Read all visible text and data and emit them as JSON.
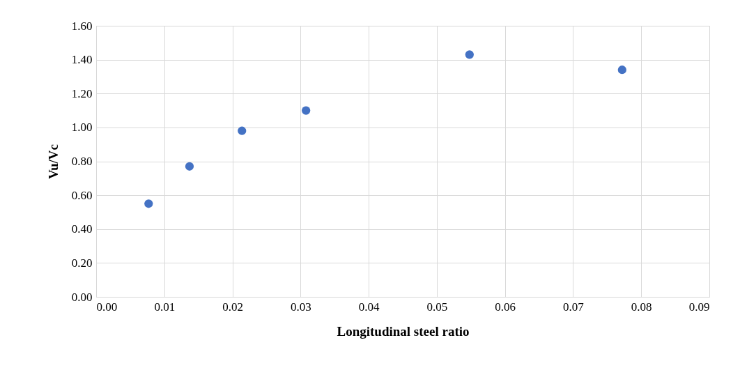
{
  "chart_data": {
    "type": "scatter",
    "xlabel": "Longitudinal steel ratio",
    "ylabel": "Vu/Vc",
    "x": [
      0.0077,
      0.0137,
      0.0214,
      0.0308,
      0.0548,
      0.0772
    ],
    "series": [
      {
        "color": "#4472c4",
        "values": [
          0.55,
          0.77,
          0.98,
          1.1,
          1.43,
          1.34
        ]
      }
    ],
    "xlim": [
      0,
      0.09
    ],
    "xticks": [
      {
        "value": 0,
        "label": "0.00"
      },
      {
        "value": 0.01,
        "label": "0.01"
      },
      {
        "value": 0.02,
        "label": "0.02"
      },
      {
        "value": 0.03,
        "label": "0.03"
      },
      {
        "value": 0.04,
        "label": "0.04"
      },
      {
        "value": 0.05,
        "label": "0.05"
      },
      {
        "value": 0.06,
        "label": "0.06"
      },
      {
        "value": 0.07,
        "label": "0.07"
      },
      {
        "value": 0.08,
        "label": "0.08"
      },
      {
        "value": 0.09,
        "label": "0.09"
      }
    ],
    "ylim": [
      0,
      1.6
    ],
    "yticks": [
      {
        "value": 0,
        "label": "0.00"
      },
      {
        "value": 0.2,
        "label": "0.20"
      },
      {
        "value": 0.4,
        "label": "0.40"
      },
      {
        "value": 0.6,
        "label": "0.60"
      },
      {
        "value": 0.8,
        "label": "0.80"
      },
      {
        "value": 1.0,
        "label": "1.00"
      },
      {
        "value": 1.2,
        "label": "1.20"
      },
      {
        "value": 1.4,
        "label": "1.40"
      },
      {
        "value": 1.6,
        "label": "1.60"
      }
    ],
    "grid": true,
    "marker": "circle"
  }
}
